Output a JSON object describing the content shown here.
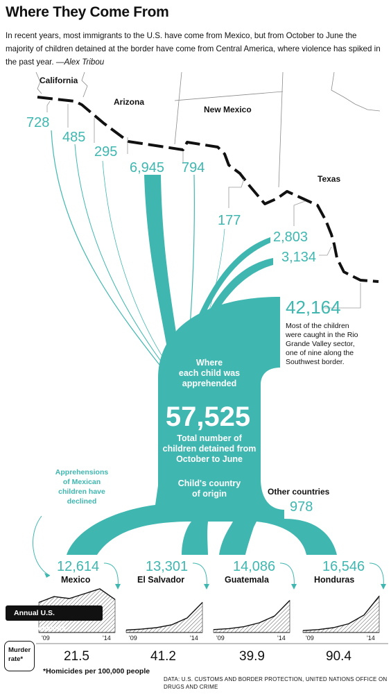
{
  "title": "Where They Come From",
  "intro": "In recent years, most immigrants to the U.S. have come from Mexico, but from October to June the majority of children detained at the border have come from Central America, where violence has spiked in the past year.",
  "byline": "—Alex Tribou",
  "states": {
    "california": "California",
    "arizona": "Arizona",
    "new_mexico": "New Mexico",
    "texas": "Texas"
  },
  "sectors": [
    {
      "value": "728"
    },
    {
      "value": "485"
    },
    {
      "value": "295"
    },
    {
      "value": "6,945"
    },
    {
      "value": "794"
    },
    {
      "value": "177"
    },
    {
      "value": "2,803"
    },
    {
      "value": "3,134"
    },
    {
      "value": "42,164"
    }
  ],
  "rio_grande_note": "Most of the children were caught in the Rio Grande Valley sector, one of nine along the Southwest border.",
  "apprehension_label": [
    "Where",
    "each child was",
    "apprehended"
  ],
  "total": {
    "value": "57,525",
    "caption": [
      "Total number of",
      "children detained from",
      "October to June"
    ]
  },
  "origin_label": [
    "Child's country",
    "of origin"
  ],
  "other_countries": {
    "label": "Other countries",
    "value": "978"
  },
  "mexico_note": [
    "Apprehensions",
    "of Mexican",
    "children have",
    "declined"
  ],
  "countries": [
    {
      "name": "Mexico",
      "value": "12,614",
      "murder_rate": "21.5",
      "trend": [
        0.62,
        0.74,
        0.7,
        0.8,
        0.9,
        0.68
      ]
    },
    {
      "name": "El Salvador",
      "value": "13,301",
      "murder_rate": "41.2",
      "trend": [
        0.05,
        0.07,
        0.1,
        0.16,
        0.3,
        0.62
      ]
    },
    {
      "name": "Guatemala",
      "value": "14,086",
      "murder_rate": "39.9",
      "trend": [
        0.06,
        0.08,
        0.12,
        0.2,
        0.34,
        0.66
      ]
    },
    {
      "name": "Honduras",
      "value": "16,546",
      "murder_rate": "90.4",
      "trend": [
        0.04,
        0.06,
        0.1,
        0.18,
        0.36,
        0.75
      ]
    }
  ],
  "sparkline_axis": {
    "start": "'09",
    "end": "'14"
  },
  "annual_label": "Annual U.S. apprehensions",
  "murder_rate_label": "Murder rate*",
  "footnote": "*Homicides per 100,000 people",
  "source": "Data: U.S. Customs and Border Protection, United Nations Office on Drugs and Crime",
  "colors": {
    "teal": "#3fb7b0",
    "ink": "#111111"
  }
}
